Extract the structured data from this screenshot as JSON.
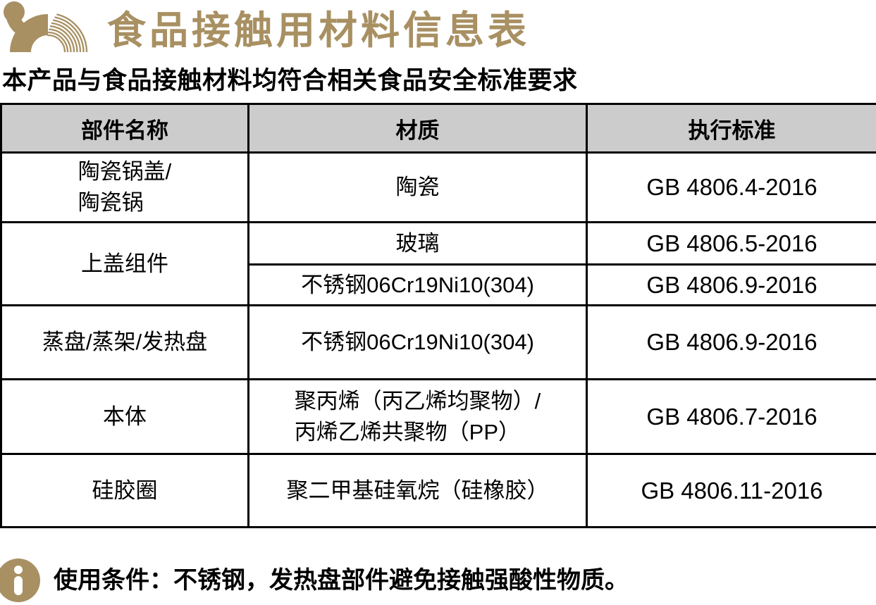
{
  "header": {
    "title": "食品接触用材料信息表",
    "subtitle": "本产品与食品接触材料均符合相关食品安全标准要求"
  },
  "icons": {
    "logo": "brand-arch-logo",
    "footer_icon": "info-icon"
  },
  "table": {
    "columns": [
      "部件名称",
      "材质",
      "执行标准"
    ],
    "rows": [
      {
        "part": [
          "陶瓷锅盖/",
          "陶瓷锅"
        ],
        "entries": [
          {
            "material": [
              "陶瓷"
            ],
            "standard": "GB 4806.4-2016"
          }
        ]
      },
      {
        "part": [
          "上盖组件"
        ],
        "entries": [
          {
            "material": [
              "玻璃"
            ],
            "standard": "GB 4806.5-2016"
          },
          {
            "material": [
              "不锈钢06Cr19Ni10(304)"
            ],
            "standard": "GB 4806.9-2016"
          }
        ]
      },
      {
        "part": [
          "蒸盘/蒸架/发热盘"
        ],
        "entries": [
          {
            "material": [
              "不锈钢06Cr19Ni10(304)"
            ],
            "standard": "GB 4806.9-2016"
          }
        ]
      },
      {
        "part": [
          "本体"
        ],
        "entries": [
          {
            "material": [
              "聚丙烯（丙乙烯均聚物）/",
              "丙烯乙烯共聚物（PP）"
            ],
            "standard": "GB 4806.7-2016"
          }
        ]
      },
      {
        "part": [
          "硅胶圈"
        ],
        "entries": [
          {
            "material": [
              "聚二甲基硅氧烷（硅橡胶）"
            ],
            "standard": "GB 4806.11-2016"
          }
        ]
      }
    ]
  },
  "footer": {
    "note": "使用条件：不锈钢，发热盘部件避免接触强酸性物质。"
  },
  "colors": {
    "accent_gold": "#A89062",
    "header_bg": "#CCCCCC",
    "border": "#000000",
    "text": "#000000"
  }
}
